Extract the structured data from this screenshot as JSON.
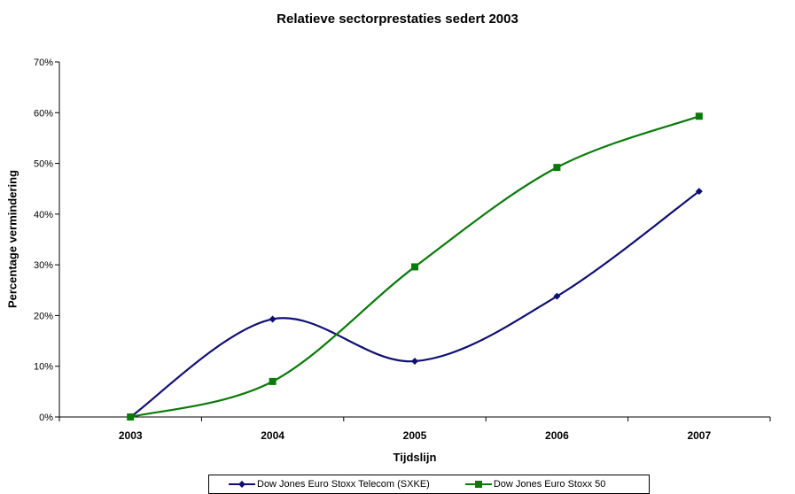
{
  "chart_data": {
    "type": "line",
    "title": "Relatieve sectorprestaties sedert 2003",
    "xlabel": "Tijdslijn",
    "ylabel": "Percentage vermindering",
    "categories": [
      "2003",
      "2004",
      "2005",
      "2006",
      "2007"
    ],
    "ylim": [
      0,
      70
    ],
    "yticks": [
      "0%",
      "10%",
      "20%",
      "30%",
      "40%",
      "50%",
      "60%",
      "70%"
    ],
    "grid": false,
    "legend_position": "bottom",
    "series": [
      {
        "name": "Dow Jones Euro Stoxx Telecom (SXKE)",
        "values": [
          0,
          19.3,
          11,
          23.8,
          44.5
        ],
        "color": "#0f0f73",
        "marker": "diamond"
      },
      {
        "name": "Dow Jones Euro Stoxx 50",
        "values": [
          0,
          7,
          29.6,
          49.2,
          59.3
        ],
        "color": "#0a7a0a",
        "marker": "square"
      }
    ]
  }
}
